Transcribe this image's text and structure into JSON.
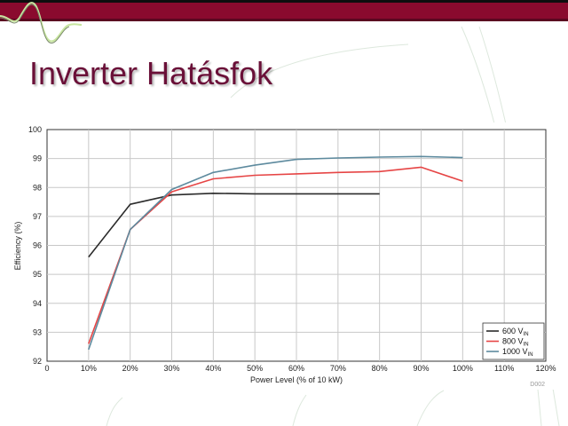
{
  "slide": {
    "title": "Inverter Hatásfok",
    "colors": {
      "header_band": "#8a0a2e",
      "title": "#6a1038",
      "bar_top": "#0e0e0e"
    }
  },
  "chart_data": {
    "type": "line",
    "title": "",
    "xlabel": "Power Level (% of 10 kW)",
    "ylabel": "Efficiency (%)",
    "xlim": [
      0,
      120
    ],
    "ylim": [
      92,
      100
    ],
    "grid": true,
    "legend_position": "bottom-right",
    "figure_code": "D002",
    "x_ticks": [
      {
        "value": 0,
        "label": "0"
      },
      {
        "value": 10,
        "label": "10%"
      },
      {
        "value": 20,
        "label": "20%"
      },
      {
        "value": 30,
        "label": "30%"
      },
      {
        "value": 40,
        "label": "40%"
      },
      {
        "value": 50,
        "label": "50%"
      },
      {
        "value": 60,
        "label": "60%"
      },
      {
        "value": 70,
        "label": "70%"
      },
      {
        "value": 80,
        "label": "80%"
      },
      {
        "value": 90,
        "label": "90%"
      },
      {
        "value": 100,
        "label": "100%"
      },
      {
        "value": 110,
        "label": "110%"
      },
      {
        "value": 120,
        "label": "120%"
      }
    ],
    "y_ticks": [
      {
        "value": 92,
        "label": "92"
      },
      {
        "value": 93,
        "label": "93"
      },
      {
        "value": 94,
        "label": "94"
      },
      {
        "value": 95,
        "label": "95"
      },
      {
        "value": 96,
        "label": "96"
      },
      {
        "value": 97,
        "label": "97"
      },
      {
        "value": 98,
        "label": "98"
      },
      {
        "value": 99,
        "label": "99"
      },
      {
        "value": 100,
        "label": "100"
      }
    ],
    "series": [
      {
        "name": "600 V",
        "sub": "IN",
        "color": "#2b2b2b",
        "x": [
          10,
          20,
          30,
          40,
          50,
          60,
          70,
          80
        ],
        "y": [
          95.6,
          97.42,
          97.74,
          97.8,
          97.78,
          97.78,
          97.78,
          97.78
        ]
      },
      {
        "name": "800 V",
        "sub": "IN",
        "color": "#e64545",
        "x": [
          10,
          20,
          30,
          40,
          50,
          60,
          70,
          80,
          90,
          100
        ],
        "y": [
          92.6,
          96.55,
          97.85,
          98.3,
          98.42,
          98.47,
          98.52,
          98.55,
          98.7,
          98.22
        ]
      },
      {
        "name": "1000 V",
        "sub": "IN",
        "color": "#5d8a9e",
        "x": [
          10,
          20,
          30,
          40,
          50,
          60,
          70,
          80,
          90,
          100
        ],
        "y": [
          92.4,
          96.55,
          97.93,
          98.52,
          98.77,
          98.97,
          99.02,
          99.05,
          99.07,
          99.03
        ]
      }
    ]
  }
}
